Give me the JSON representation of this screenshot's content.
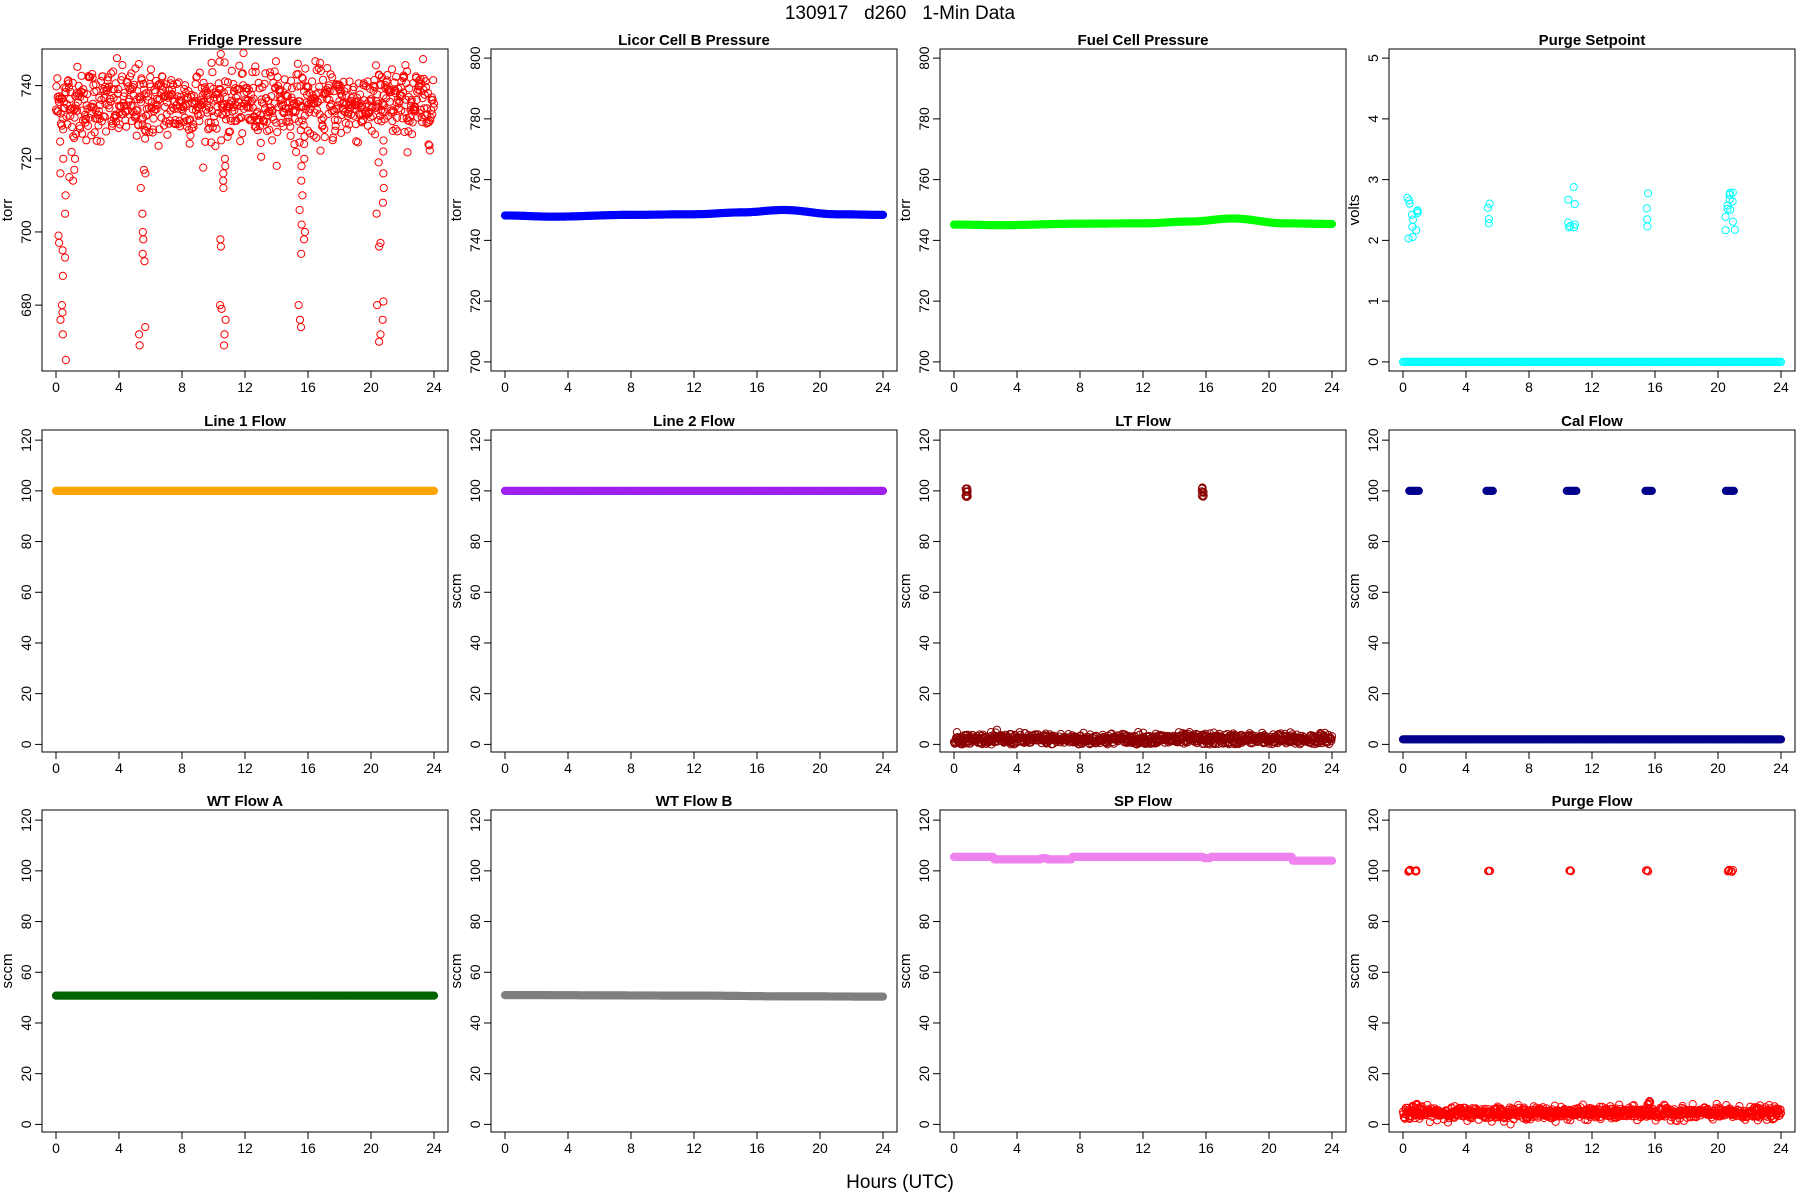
{
  "figure": {
    "title": "130917   d260   1-Min Data",
    "x_caption": "Hours (UTC)"
  },
  "chart_data": [
    {
      "id": "fridge",
      "type": "scatter",
      "title": "Fridge Pressure",
      "ylabel": "torr",
      "color": "#ff0000",
      "marker": "hollow",
      "xlim": [
        0,
        24
      ],
      "xticks": [
        0,
        4,
        8,
        12,
        16,
        20,
        24
      ],
      "ylim": [
        662,
        750
      ],
      "yticks": [
        680,
        700,
        720,
        740
      ],
      "pattern": "noisy",
      "base": 735,
      "noise": 5,
      "spikes": [
        {
          "x": 0.4,
          "values": [
            720,
            716,
            710,
            705,
            699,
            697,
            695,
            693,
            688,
            680,
            678,
            676,
            672,
            665
          ]
        },
        {
          "x": 1.0,
          "values": [
            720,
            717,
            715,
            714
          ]
        },
        {
          "x": 5.5,
          "values": [
            717,
            716,
            712,
            705,
            700,
            698,
            694,
            692,
            674,
            672,
            669
          ]
        },
        {
          "x": 10.6,
          "values": [
            720,
            718,
            716,
            714,
            712,
            698,
            696,
            680,
            679,
            676,
            672,
            669
          ]
        },
        {
          "x": 15.6,
          "values": [
            724,
            720,
            718,
            714,
            710,
            706,
            702,
            700,
            698,
            694,
            680,
            676,
            674
          ]
        },
        {
          "x": 20.6,
          "values": [
            725,
            722,
            719,
            716,
            712,
            708,
            705,
            697,
            696,
            681,
            680,
            676,
            670,
            672
          ]
        }
      ]
    },
    {
      "id": "licor",
      "type": "scatter",
      "title": "Licor Cell B Pressure",
      "ylabel": "torr",
      "color": "#0000ff",
      "marker": "filled",
      "xlim": [
        0,
        24
      ],
      "xticks": [
        0,
        4,
        8,
        12,
        16,
        20,
        24
      ],
      "ylim": [
        697,
        803
      ],
      "yticks": [
        700,
        720,
        740,
        760,
        780,
        800
      ],
      "pattern": "curve",
      "points": [
        [
          0,
          748.2
        ],
        [
          3,
          747.8
        ],
        [
          8,
          748.4
        ],
        [
          12,
          748.6
        ],
        [
          15,
          749.2
        ],
        [
          17.7,
          750
        ],
        [
          21,
          748.6
        ],
        [
          24,
          748.4
        ]
      ]
    },
    {
      "id": "fuelcell",
      "type": "scatter",
      "title": "Fuel Cell Pressure",
      "ylabel": "torr",
      "color": "#00ff00",
      "marker": "filled",
      "xlim": [
        0,
        24
      ],
      "xticks": [
        0,
        4,
        8,
        12,
        16,
        20,
        24
      ],
      "ylim": [
        697,
        803
      ],
      "yticks": [
        700,
        720,
        740,
        760,
        780,
        800
      ],
      "pattern": "curve",
      "points": [
        [
          0,
          745.2
        ],
        [
          3,
          745
        ],
        [
          8,
          745.5
        ],
        [
          12,
          745.6
        ],
        [
          15,
          746.2
        ],
        [
          17.7,
          747.2
        ],
        [
          21,
          745.6
        ],
        [
          24,
          745.4
        ]
      ]
    },
    {
      "id": "purgesp",
      "type": "scatter",
      "title": "Purge Setpoint",
      "ylabel": "volts",
      "color": "#00ffff",
      "marker": "hollow",
      "xlim": [
        0,
        24
      ],
      "xticks": [
        0,
        4,
        8,
        12,
        16,
        20,
        24
      ],
      "ylim": [
        -0.15,
        5.15
      ],
      "yticks": [
        0,
        1,
        2,
        3,
        4,
        5
      ],
      "pattern": "flat",
      "base": 0,
      "clusters": [
        {
          "x": 0.35,
          "y": 2.4
        },
        {
          "x": 0.6,
          "y": 2.44
        },
        {
          "x": 0.9,
          "y": 2.47
        },
        {
          "x": 5.45,
          "y": 2.42
        },
        {
          "x": 10.55,
          "y": 2.42
        },
        {
          "x": 10.85,
          "y": 2.48
        },
        {
          "x": 15.55,
          "y": 2.42
        },
        {
          "x": 20.55,
          "y": 2.42
        },
        {
          "x": 20.8,
          "y": 2.47
        },
        {
          "x": 21.0,
          "y": 2.5
        }
      ]
    },
    {
      "id": "line1",
      "type": "scatter",
      "title": "Line 1 Flow",
      "ylabel": "",
      "color": "#ffa500",
      "marker": "filled",
      "xlim": [
        0,
        24
      ],
      "xticks": [
        0,
        4,
        8,
        12,
        16,
        20,
        24
      ],
      "ylim": [
        -3,
        124
      ],
      "yticks": [
        0,
        20,
        40,
        60,
        80,
        100,
        120
      ],
      "pattern": "flat",
      "base": 100
    },
    {
      "id": "line2",
      "type": "scatter",
      "title": "Line 2 Flow",
      "ylabel": "sccm",
      "color": "#a020f0",
      "marker": "filled",
      "xlim": [
        0,
        24
      ],
      "xticks": [
        0,
        4,
        8,
        12,
        16,
        20,
        24
      ],
      "ylim": [
        -3,
        124
      ],
      "yticks": [
        0,
        20,
        40,
        60,
        80,
        100,
        120
      ],
      "pattern": "flat",
      "base": 100
    },
    {
      "id": "ltflow",
      "type": "scatter",
      "title": "LT Flow",
      "ylabel": "sccm",
      "color": "#8b0000",
      "marker": "hollow",
      "xlim": [
        0,
        24
      ],
      "xticks": [
        0,
        4,
        8,
        12,
        16,
        20,
        24
      ],
      "ylim": [
        -3,
        124
      ],
      "yticks": [
        0,
        20,
        40,
        60,
        80,
        100,
        120
      ],
      "pattern": "noisy",
      "base": 2,
      "noise": 1.2,
      "clusters": [
        {
          "x": 0.8,
          "y": 101
        },
        {
          "x": 0.8,
          "y": 99.5
        },
        {
          "x": 0.8,
          "y": 98
        },
        {
          "x": 15.8,
          "y": 101
        },
        {
          "x": 15.8,
          "y": 99.5
        },
        {
          "x": 15.8,
          "y": 98
        }
      ]
    },
    {
      "id": "calflow",
      "type": "scatter",
      "title": "Cal Flow",
      "ylabel": "sccm",
      "color": "#00008b",
      "marker": "filled",
      "xlim": [
        0,
        24
      ],
      "xticks": [
        0,
        4,
        8,
        12,
        16,
        20,
        24
      ],
      "ylim": [
        -3,
        124
      ],
      "yticks": [
        0,
        20,
        40,
        60,
        80,
        100,
        120
      ],
      "pattern": "flat",
      "base": 2,
      "segments": [
        {
          "x0": 0.4,
          "x1": 1.0,
          "y": 100
        },
        {
          "x0": 5.3,
          "x1": 5.7,
          "y": 100
        },
        {
          "x0": 10.4,
          "x1": 11.0,
          "y": 100
        },
        {
          "x0": 15.4,
          "x1": 15.8,
          "y": 100
        },
        {
          "x0": 20.5,
          "x1": 21.0,
          "y": 100
        }
      ]
    },
    {
      "id": "wtflowa",
      "type": "scatter",
      "title": "WT Flow A",
      "ylabel": "sccm",
      "color": "#006400",
      "marker": "filled",
      "xlim": [
        0,
        24
      ],
      "xticks": [
        0,
        4,
        8,
        12,
        16,
        20,
        24
      ],
      "ylim": [
        -3,
        124
      ],
      "yticks": [
        0,
        20,
        40,
        60,
        80,
        100,
        120
      ],
      "pattern": "flat",
      "base": 50.8
    },
    {
      "id": "wtflowb",
      "type": "scatter",
      "title": "WT Flow B",
      "ylabel": "sccm",
      "color": "#7f7f7f",
      "marker": "filled",
      "xlim": [
        0,
        24
      ],
      "xticks": [
        0,
        4,
        8,
        12,
        16,
        20,
        24
      ],
      "ylim": [
        -3,
        124
      ],
      "yticks": [
        0,
        20,
        40,
        60,
        80,
        100,
        120
      ],
      "pattern": "curve",
      "points": [
        [
          0,
          51
        ],
        [
          12,
          50.8
        ],
        [
          18,
          50.5
        ],
        [
          24,
          50.4
        ]
      ]
    },
    {
      "id": "spflow",
      "type": "scatter",
      "title": "SP Flow",
      "ylabel": "sccm",
      "color": "#ee82ee",
      "marker": "filled",
      "xlim": [
        0,
        24
      ],
      "xticks": [
        0,
        4,
        8,
        12,
        16,
        20,
        24
      ],
      "ylim": [
        -3,
        124
      ],
      "yticks": [
        0,
        20,
        40,
        60,
        80,
        100,
        120
      ],
      "pattern": "steps",
      "steps": [
        [
          0,
          105.5
        ],
        [
          2.5,
          104.5
        ],
        [
          5.5,
          105
        ],
        [
          5.9,
          104.5
        ],
        [
          7.5,
          105.5
        ],
        [
          15.8,
          105
        ],
        [
          16.3,
          105.5
        ],
        [
          21.5,
          104
        ]
      ]
    },
    {
      "id": "purgeflow",
      "type": "scatter",
      "title": "Purge Flow",
      "ylabel": "sccm",
      "color": "#ff0000",
      "marker": "hollow",
      "xlim": [
        0,
        24
      ],
      "xticks": [
        0,
        4,
        8,
        12,
        16,
        20,
        24
      ],
      "ylim": [
        -3,
        124
      ],
      "yticks": [
        0,
        20,
        40,
        60,
        80,
        100,
        120
      ],
      "pattern": "noisy",
      "base": 4.5,
      "noise": 1.2,
      "clusters": [
        {
          "x": 0.4,
          "y": 100
        },
        {
          "x": 0.8,
          "y": 100
        },
        {
          "x": 5.45,
          "y": 100
        },
        {
          "x": 10.6,
          "y": 100
        },
        {
          "x": 15.5,
          "y": 100
        },
        {
          "x": 20.7,
          "y": 100
        },
        {
          "x": 20.9,
          "y": 100
        },
        {
          "x": 0.6,
          "y": 7
        },
        {
          "x": 0.9,
          "y": 8
        },
        {
          "x": 15.6,
          "y": 8
        },
        {
          "x": 15.7,
          "y": 9
        }
      ]
    }
  ]
}
